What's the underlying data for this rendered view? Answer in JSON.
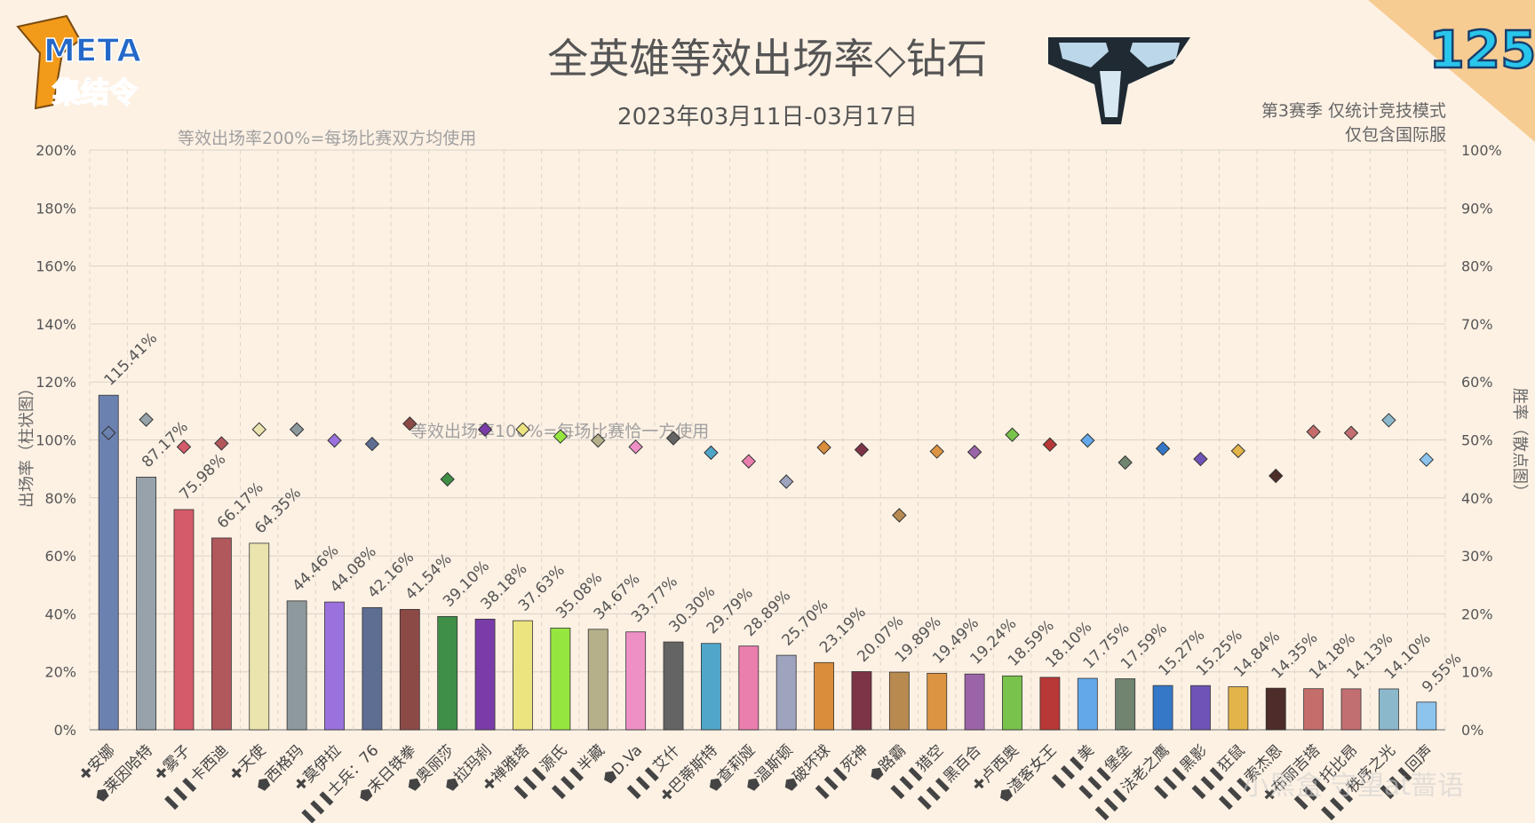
{
  "header": {
    "logo_line1": "META",
    "logo_line2": "集结令",
    "issue_number": "125",
    "note_season": "第3赛季 仅统计竞技模式",
    "note_region": "仅包含国际服",
    "watermark": "小黑盒 守望at蔷语"
  },
  "chart_data": {
    "type": "bar",
    "title": "全英雄等效出场率◇钻石",
    "subtitle": "2023年03月11日-03月17日",
    "annotation_200": "等效出场率200%=每场比赛双方均使用",
    "annotation_100": "等效出场率100%=每场比赛恰一方使用",
    "ylabel_left": "出场率（柱状图）",
    "ylabel_right": "胜率（散点图）",
    "ylim_left": [
      0,
      200
    ],
    "ylim_right": [
      0,
      100
    ],
    "yticks_left": [
      "0%",
      "20%",
      "40%",
      "60%",
      "80%",
      "100%",
      "120%",
      "140%",
      "160%",
      "180%",
      "200%"
    ],
    "yticks_right": [
      "0%",
      "10%",
      "20%",
      "30%",
      "40%",
      "50%",
      "60%",
      "70%",
      "80%",
      "90%",
      "100%"
    ],
    "grid": true,
    "series": [
      {
        "name": "出场率",
        "type": "bar",
        "values": [
          115.41,
          87.17,
          75.98,
          66.17,
          64.35,
          44.46,
          44.08,
          42.16,
          41.54,
          39.1,
          38.18,
          37.63,
          35.08,
          34.67,
          33.77,
          30.3,
          29.79,
          28.89,
          25.7,
          23.19,
          20.07,
          19.89,
          19.49,
          19.24,
          18.59,
          18.1,
          17.75,
          17.59,
          15.27,
          15.25,
          14.84,
          14.35,
          14.18,
          14.13,
          14.1,
          9.55
        ]
      },
      {
        "name": "胜率",
        "type": "scatter",
        "values": [
          51.2,
          53.5,
          48.8,
          49.4,
          51.8,
          51.8,
          49.9,
          49.3,
          52.8,
          43.2,
          51.8,
          51.8,
          50.6,
          49.9,
          48.8,
          50.3,
          47.8,
          46.3,
          42.8,
          48.7,
          48.3,
          37.0,
          48.0,
          47.9,
          50.9,
          49.2,
          49.9,
          46.1,
          48.5,
          46.7,
          48.1,
          43.8,
          51.4,
          51.2,
          53.4,
          46.6
        ]
      }
    ],
    "categories": [
      "安娜",
      "莱因哈特",
      "雾子",
      "卡西迪",
      "天使",
      "西格玛",
      "莫伊拉",
      "士兵：76",
      "末日铁拳",
      "奥丽莎",
      "拉玛刹",
      "禅雅塔",
      "源氏",
      "半藏",
      "D.Va",
      "艾什",
      "巴蒂斯特",
      "查莉娅",
      "温斯顿",
      "破坏球",
      "死神",
      "路霸",
      "猎空",
      "黑百合",
      "卢西奥",
      "渣客女王",
      "美",
      "堡垒",
      "法老之鹰",
      "黑影",
      "狂鼠",
      "索杰恩",
      "布丽吉塔",
      "托比昂",
      "秩序之光",
      "回声"
    ],
    "roles": [
      "support",
      "tank",
      "support",
      "damage",
      "support",
      "tank",
      "support",
      "damage",
      "tank",
      "tank",
      "tank",
      "support",
      "damage",
      "damage",
      "tank",
      "damage",
      "support",
      "tank",
      "tank",
      "tank",
      "damage",
      "tank",
      "damage",
      "damage",
      "support",
      "tank",
      "damage",
      "damage",
      "damage",
      "damage",
      "damage",
      "damage",
      "support",
      "damage",
      "damage",
      "damage"
    ],
    "value_labels": [
      "115.41%",
      "87.17%",
      "75.98%",
      "66.17%",
      "64.35%",
      "44.46%",
      "44.08%",
      "42.16%",
      "41.54%",
      "39.10%",
      "38.18%",
      "37.63%",
      "35.08%",
      "34.67%",
      "33.77%",
      "30.30%",
      "29.79%",
      "28.89%",
      "25.70%",
      "23.19%",
      "20.07%",
      "19.89%",
      "19.49%",
      "19.24%",
      "18.59%",
      "18.10%",
      "17.75%",
      "17.59%",
      "15.27%",
      "15.25%",
      "14.84%",
      "14.35%",
      "14.18%",
      "14.13%",
      "14.10%",
      "9.55%"
    ],
    "colors": [
      "#6b81b0",
      "#97a2ab",
      "#d35b6a",
      "#b0585c",
      "#ece4ae",
      "#8d999d",
      "#9b72dd",
      "#5d6e92",
      "#8c4a47",
      "#3f8f46",
      "#7a3ca8",
      "#ece47f",
      "#96e640",
      "#b5b08a",
      "#ee90c5",
      "#646464",
      "#4fa6c8",
      "#ea7fae",
      "#9ea3be",
      "#da8d3b",
      "#7d3446",
      "#b88a4f",
      "#dc9442",
      "#9c64a8",
      "#79c24c",
      "#b73836",
      "#63a9ea",
      "#70846f",
      "#3578c8",
      "#7053b6",
      "#e2b449",
      "#4e2c2a",
      "#c46d6a",
      "#c26f72",
      "#8cb8cb",
      "#8cc4ee"
    ]
  }
}
